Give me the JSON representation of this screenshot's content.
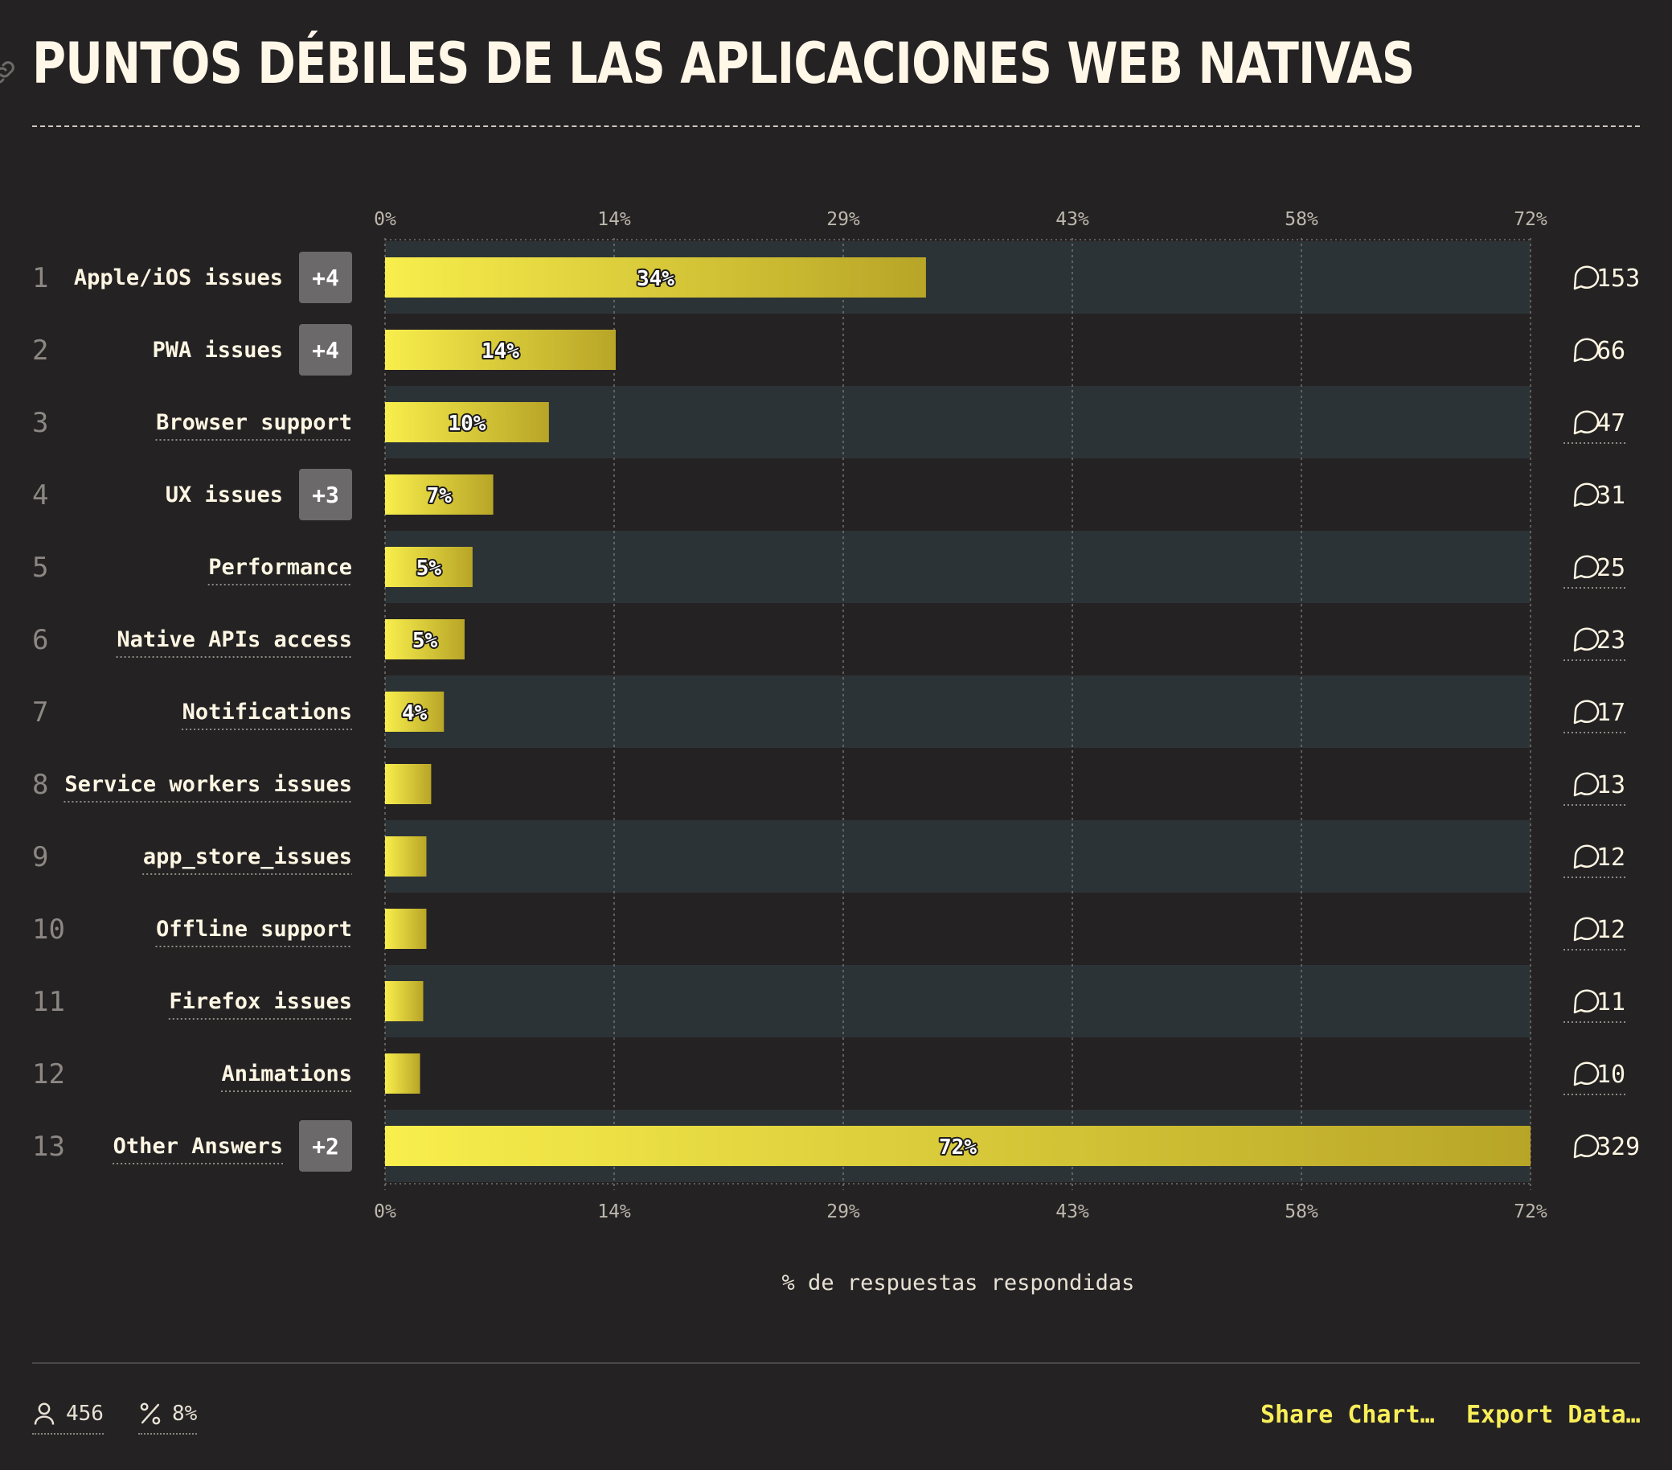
{
  "title": "PUNTOS DÉBILES DE LAS APLICACIONES WEB NATIVAS",
  "icons": {
    "link": "link-icon",
    "comment": "comment-bubble-icon",
    "respondents": "person-icon",
    "percent": "percent-icon"
  },
  "colors": {
    "background": "#252223",
    "band": "#2c3336",
    "bar_start": "#f8ee4c",
    "bar_end": "#b8a527",
    "text": "#fdf6e3",
    "accent": "#f8ee58",
    "badge": "#6b696a"
  },
  "chart_data": {
    "type": "bar",
    "orientation": "horizontal",
    "xlabel": "% de respuestas respondidas",
    "xlim": [
      0,
      72
    ],
    "ticks": [
      "0%",
      "14%",
      "29%",
      "43%",
      "58%",
      "72%"
    ],
    "grid": true,
    "rows": [
      {
        "rank": "1",
        "label": "Apple/iOS issues",
        "badge": "+4",
        "value": 34,
        "value_label": "34%",
        "count": "153"
      },
      {
        "rank": "2",
        "label": "PWA issues",
        "badge": "+4",
        "value": 14.5,
        "value_label": "14%",
        "count": "66"
      },
      {
        "rank": "3",
        "label": "Browser support",
        "badge": "",
        "value": 10.3,
        "value_label": "10%",
        "count": "47"
      },
      {
        "rank": "4",
        "label": "UX issues",
        "badge": "+3",
        "value": 6.8,
        "value_label": "7%",
        "count": "31"
      },
      {
        "rank": "5",
        "label": "Performance",
        "badge": "",
        "value": 5.5,
        "value_label": "5%",
        "count": "25"
      },
      {
        "rank": "6",
        "label": "Native APIs access",
        "badge": "",
        "value": 5.0,
        "value_label": "5%",
        "count": "23"
      },
      {
        "rank": "7",
        "label": "Notifications",
        "badge": "",
        "value": 3.7,
        "value_label": "4%",
        "count": "17"
      },
      {
        "rank": "8",
        "label": "Service workers issues",
        "badge": "",
        "value": 2.9,
        "value_label": "",
        "count": "13"
      },
      {
        "rank": "9",
        "label": "app_store_issues",
        "badge": "",
        "value": 2.6,
        "value_label": "",
        "count": "12"
      },
      {
        "rank": "10",
        "label": "Offline support",
        "badge": "",
        "value": 2.6,
        "value_label": "",
        "count": "12"
      },
      {
        "rank": "11",
        "label": "Firefox issues",
        "badge": "",
        "value": 2.4,
        "value_label": "",
        "count": "11"
      },
      {
        "rank": "12",
        "label": "Animations",
        "badge": "",
        "value": 2.2,
        "value_label": "",
        "count": "10"
      },
      {
        "rank": "13",
        "label": "Other Answers",
        "badge": "+2",
        "value": 72,
        "value_label": "72%",
        "count": "329"
      }
    ]
  },
  "footer": {
    "respondents": "456",
    "percent": "8%",
    "share_label": "Share Chart…",
    "export_label": "Export Data…"
  }
}
